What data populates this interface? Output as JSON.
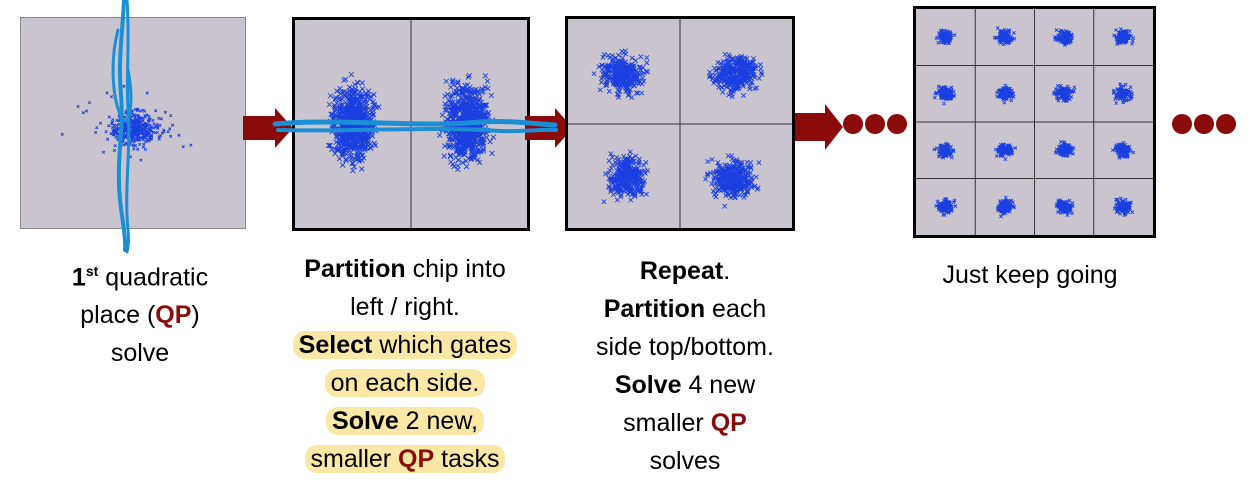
{
  "colors": {
    "accent": "#8b0a0a",
    "scatter": "#1a3fe0",
    "panel_bg": "#c9c4ce",
    "highlight": "#fbe8a6",
    "pen": "#1a8fd6"
  },
  "steps": [
    {
      "name": "step-1",
      "caption": {
        "l1_num": "1",
        "l1_sup": "st",
        "l1_rest": " quadratic",
        "l2_pre": "place (",
        "l2_qp": "QP",
        "l2_post": ")",
        "l3": "solve"
      }
    },
    {
      "name": "step-2",
      "caption": {
        "l1_b": "Partition",
        "l1_rest": " chip into",
        "l2": "left / right.",
        "l3_b": "Select",
        "l3_rest": " which gates",
        "l4": "on each side.",
        "l5_b": "Solve",
        "l5_rest": " 2 new,",
        "l6_pre": "smaller ",
        "l6_qp": "QP",
        "l6_post": " tasks"
      }
    },
    {
      "name": "step-3",
      "caption": {
        "l1_b": "Repeat",
        "l1_rest": ".",
        "l2_b": "Partition",
        "l2_rest": " each",
        "l3": "side top/bottom.",
        "l4_b": "Solve",
        "l4_rest": " 4 new",
        "l5_pre": "smaller ",
        "l5_qp": "QP",
        "l6": "solves"
      }
    },
    {
      "name": "step-4",
      "caption": {
        "l1": "Just keep going"
      }
    }
  ],
  "grid_divisions": [
    1,
    2,
    4,
    16
  ],
  "marker": "x"
}
